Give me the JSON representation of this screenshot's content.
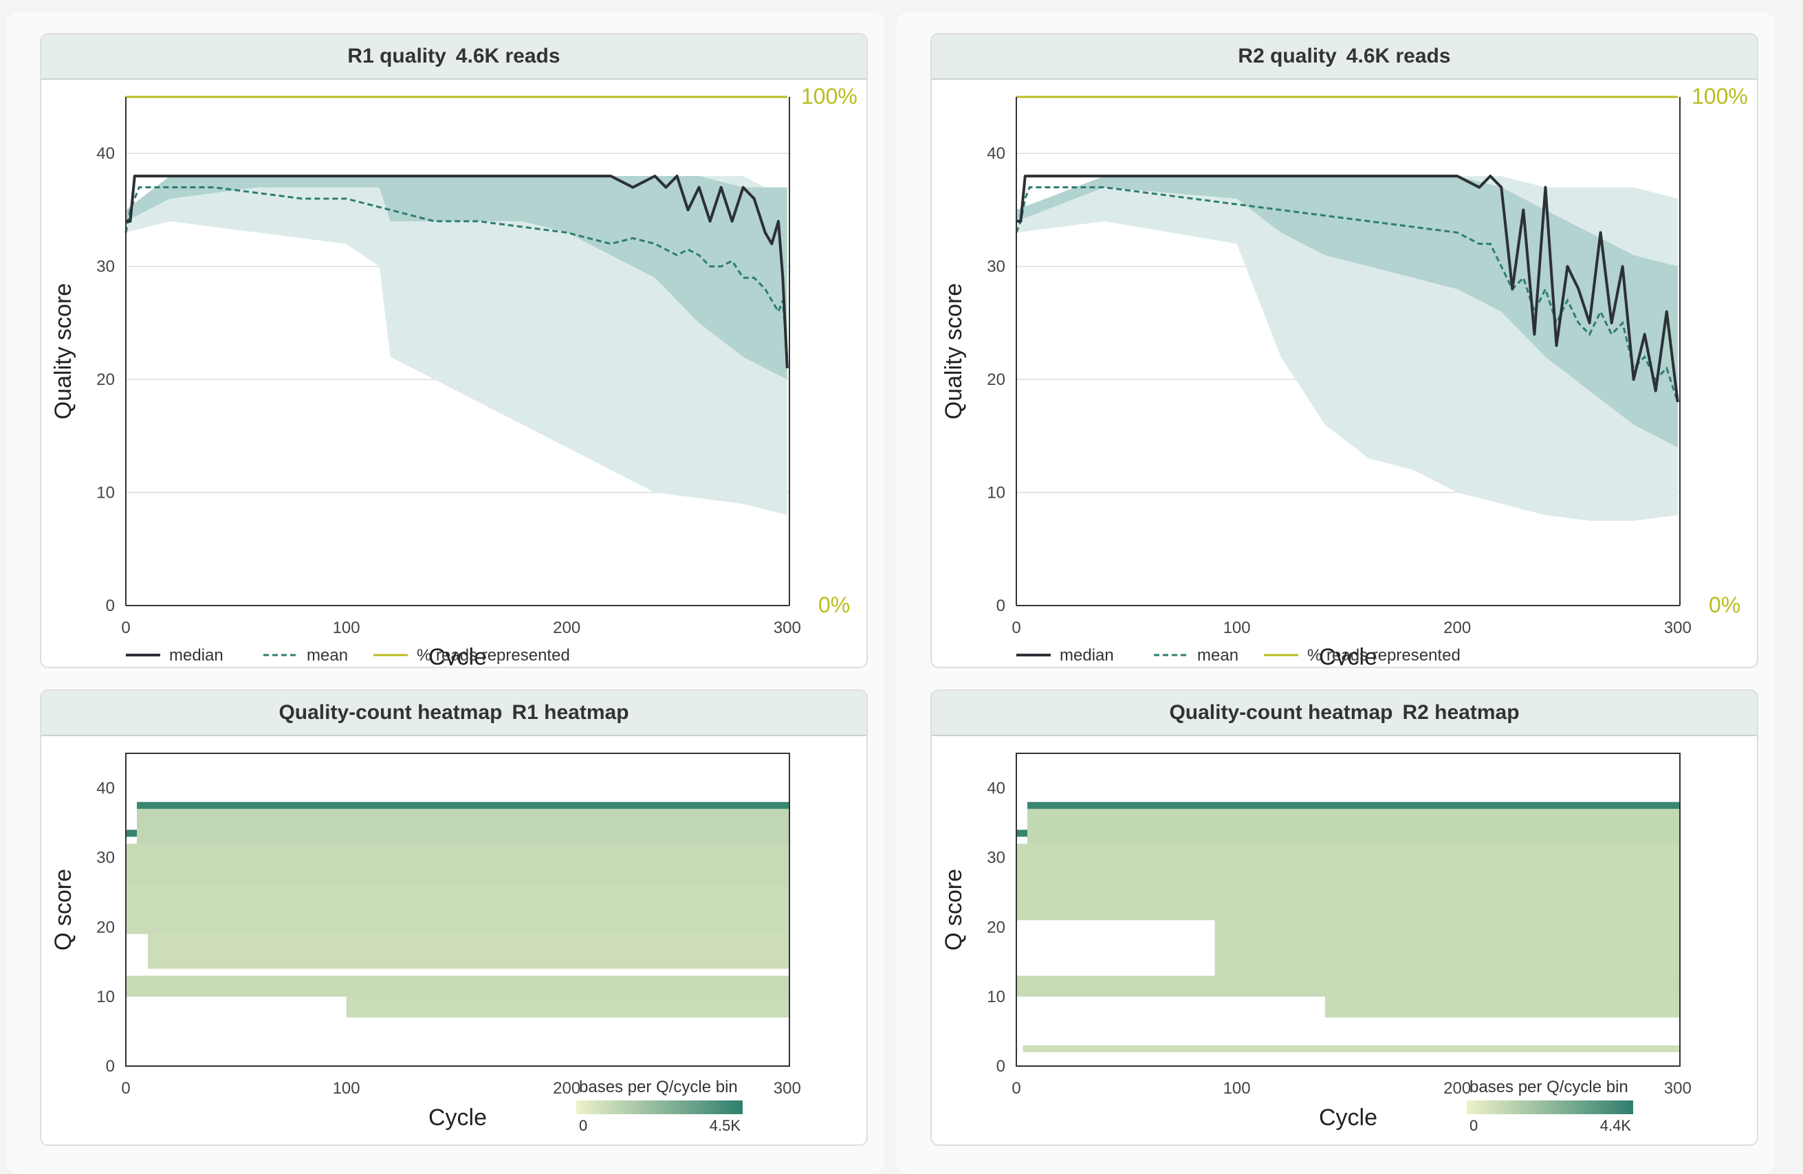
{
  "colors": {
    "median": "#2c3136",
    "mean": "#2e7d6f",
    "pct_line": "#b9bd1d",
    "band_outer": "#dcebea",
    "band_inner": "#b2d3cf",
    "grid": "#d9dcdc",
    "heat_low": "#eef2c8",
    "heat_high": "#2f7f6e"
  },
  "panels": {
    "r1_quality": {
      "title": "R1 quality",
      "subtitle": "4.6K reads"
    },
    "r2_quality": {
      "title": "R2 quality",
      "subtitle": "4.6K reads"
    },
    "r1_heatmap": {
      "title": "Quality-count heatmap",
      "subtitle": "R1 heatmap"
    },
    "r2_heatmap": {
      "title": "Quality-count heatmap",
      "subtitle": "R2 heatmap"
    }
  },
  "legend": {
    "median": "median",
    "mean": "mean",
    "pct": "% reads represented",
    "heat_title": "bases per Q/cycle bin",
    "r1_heat_min": "0",
    "r1_heat_max": "4.5K",
    "r2_heat_min": "0",
    "r2_heat_max": "4.4K"
  },
  "right_axis": {
    "top": "100%",
    "bottom": "0%"
  },
  "chart_data": [
    {
      "id": "r1_quality",
      "type": "line",
      "title": "R1 quality  4.6K reads",
      "xlabel": "Cycle",
      "ylabel": "Quality score",
      "xlim": [
        0,
        301
      ],
      "ylim": [
        0,
        45
      ],
      "x_ticks": [
        0,
        100,
        200,
        300
      ],
      "y_ticks": [
        0,
        10,
        20,
        30,
        40
      ],
      "right_axis_labels": [
        "100%",
        "0%"
      ],
      "x": [
        0,
        2,
        4,
        6,
        10,
        20,
        40,
        60,
        80,
        100,
        120,
        140,
        160,
        180,
        200,
        220,
        230,
        240,
        245,
        250,
        255,
        260,
        265,
        270,
        275,
        280,
        285,
        290,
        293,
        296,
        298,
        300
      ],
      "series": [
        {
          "name": "median",
          "values": [
            34,
            34,
            38,
            38,
            38,
            38,
            38,
            38,
            38,
            38,
            38,
            38,
            38,
            38,
            38,
            38,
            37,
            38,
            37,
            38,
            35,
            37,
            34,
            37,
            34,
            37,
            36,
            33,
            32,
            34,
            29,
            21
          ]
        },
        {
          "name": "mean",
          "values": [
            33,
            35,
            36,
            37,
            37,
            37,
            37,
            36.5,
            36,
            36,
            35,
            34,
            34,
            33.5,
            33,
            32,
            32.5,
            32,
            31.5,
            31,
            31.5,
            31,
            30,
            30,
            30.5,
            29,
            29,
            28,
            27,
            26,
            27,
            22
          ]
        },
        {
          "name": "% reads represented",
          "values": [
            100,
            100,
            100,
            100,
            100,
            100,
            100,
            100,
            100,
            100,
            100,
            100,
            100,
            100,
            100,
            100,
            100,
            100,
            100,
            100,
            100,
            100,
            100,
            100,
            100,
            100,
            100,
            100,
            100,
            100,
            100,
            100
          ]
        }
      ],
      "band": {
        "x": [
          0,
          20,
          60,
          100,
          115,
          120,
          150,
          180,
          200,
          220,
          240,
          260,
          280,
          290,
          300
        ],
        "q10": [
          33,
          34,
          33,
          32,
          30,
          22,
          19,
          16,
          14,
          12,
          10,
          9.5,
          9,
          8.5,
          8
        ],
        "q25": [
          34,
          36,
          37,
          37,
          37,
          34,
          34,
          34,
          33,
          31,
          29,
          25,
          22,
          21,
          20
        ],
        "q75": [
          35,
          38,
          38,
          38,
          38,
          38,
          38,
          38,
          38,
          38,
          38,
          38,
          37,
          37,
          37
        ],
        "q90": [
          35,
          38,
          38,
          38,
          38,
          38,
          38,
          38,
          38,
          38,
          38,
          38,
          38,
          37,
          37
        ]
      }
    },
    {
      "id": "r2_quality",
      "type": "line",
      "title": "R2 quality  4.6K reads",
      "xlabel": "Cycle",
      "ylabel": "Quality score",
      "xlim": [
        0,
        301
      ],
      "ylim": [
        0,
        45
      ],
      "x_ticks": [
        0,
        100,
        200,
        300
      ],
      "y_ticks": [
        0,
        10,
        20,
        30,
        40
      ],
      "right_axis_labels": [
        "100%",
        "0%"
      ],
      "x": [
        0,
        2,
        4,
        6,
        10,
        40,
        80,
        120,
        160,
        200,
        210,
        215,
        220,
        225,
        230,
        235,
        240,
        245,
        250,
        255,
        260,
        265,
        270,
        275,
        280,
        285,
        290,
        295,
        300
      ],
      "series": [
        {
          "name": "median",
          "values": [
            34,
            34,
            38,
            38,
            38,
            38,
            38,
            38,
            38,
            38,
            37,
            38,
            37,
            28,
            35,
            24,
            37,
            23,
            30,
            28,
            25,
            33,
            25,
            30,
            20,
            24,
            19,
            26,
            18
          ]
        },
        {
          "name": "mean",
          "values": [
            33,
            34,
            36,
            37,
            37,
            37,
            36,
            35,
            34,
            33,
            32,
            32,
            30,
            28,
            29,
            26,
            28,
            25,
            27,
            25,
            24,
            26,
            24,
            25,
            21,
            22,
            20,
            21,
            18
          ]
        },
        {
          "name": "% reads represented",
          "values": [
            100,
            100,
            100,
            100,
            100,
            100,
            100,
            100,
            100,
            100,
            100,
            100,
            100,
            100,
            100,
            100,
            100,
            100,
            100,
            100,
            100,
            100,
            100,
            100,
            100,
            100,
            100,
            100,
            100
          ]
        }
      ],
      "band": {
        "x": [
          0,
          40,
          100,
          120,
          140,
          160,
          180,
          200,
          220,
          240,
          260,
          280,
          300
        ],
        "q10": [
          33,
          34,
          32,
          22,
          16,
          13,
          12,
          10,
          9,
          8,
          7.5,
          7.5,
          8
        ],
        "q25": [
          34,
          37,
          36,
          33,
          31,
          30,
          29,
          28,
          26,
          22,
          19,
          16,
          14
        ],
        "q75": [
          35,
          38,
          38,
          38,
          38,
          38,
          38,
          38,
          37,
          35,
          33,
          31,
          30
        ],
        "q90": [
          35,
          38,
          38,
          38,
          38,
          38,
          38,
          38,
          38,
          37,
          37,
          37,
          36
        ]
      }
    },
    {
      "id": "r1_heatmap",
      "type": "heatmap",
      "title": "Quality-count heatmap  R1 heatmap",
      "xlabel": "Cycle",
      "ylabel": "Q score",
      "xlim": [
        0,
        301
      ],
      "ylim": [
        0,
        45
      ],
      "x_ticks": [
        0,
        100,
        200,
        300
      ],
      "y_ticks": [
        0,
        10,
        20,
        30,
        40
      ],
      "colorbar": {
        "label": "bases per Q/cycle bin",
        "min": 0,
        "max": 4500
      },
      "bands": [
        {
          "q": [
            37,
            38
          ],
          "x": [
            5,
            301
          ],
          "count": 4200
        },
        {
          "q": [
            33,
            34
          ],
          "x": [
            0,
            5
          ],
          "count": 4300
        },
        {
          "q": [
            32,
            37
          ],
          "x": [
            5,
            301
          ],
          "count": 600
        },
        {
          "q": [
            26,
            32
          ],
          "x": [
            0,
            301
          ],
          "count": 450
        },
        {
          "q": [
            19,
            26
          ],
          "x": [
            0,
            301
          ],
          "count": 380
        },
        {
          "q": [
            14,
            19
          ],
          "x": [
            10,
            301
          ],
          "count": 300
        },
        {
          "q": [
            10,
            13
          ],
          "x": [
            0,
            301
          ],
          "count": 420
        },
        {
          "q": [
            7,
            10
          ],
          "x": [
            100,
            301
          ],
          "count": 350
        }
      ]
    },
    {
      "id": "r2_heatmap",
      "type": "heatmap",
      "title": "Quality-count heatmap  R2 heatmap",
      "xlabel": "Cycle",
      "ylabel": "Q score",
      "xlim": [
        0,
        301
      ],
      "ylim": [
        0,
        45
      ],
      "x_ticks": [
        0,
        100,
        200,
        300
      ],
      "y_ticks": [
        0,
        10,
        20,
        30,
        40
      ],
      "colorbar": {
        "label": "bases per Q/cycle bin",
        "min": 0,
        "max": 4400
      },
      "bands": [
        {
          "q": [
            37,
            38
          ],
          "x": [
            5,
            301
          ],
          "count": 4100
        },
        {
          "q": [
            33,
            34
          ],
          "x": [
            0,
            5
          ],
          "count": 4200
        },
        {
          "q": [
            32,
            37
          ],
          "x": [
            5,
            301
          ],
          "count": 550
        },
        {
          "q": [
            21,
            32
          ],
          "x": [
            0,
            301
          ],
          "count": 420
        },
        {
          "q": [
            13,
            21
          ],
          "x": [
            90,
            301
          ],
          "count": 380
        },
        {
          "q": [
            10,
            13
          ],
          "x": [
            0,
            301
          ],
          "count": 450
        },
        {
          "q": [
            7,
            10
          ],
          "x": [
            140,
            301
          ],
          "count": 400
        },
        {
          "q": [
            2,
            3
          ],
          "x": [
            3,
            301
          ],
          "count": 250
        }
      ]
    }
  ]
}
